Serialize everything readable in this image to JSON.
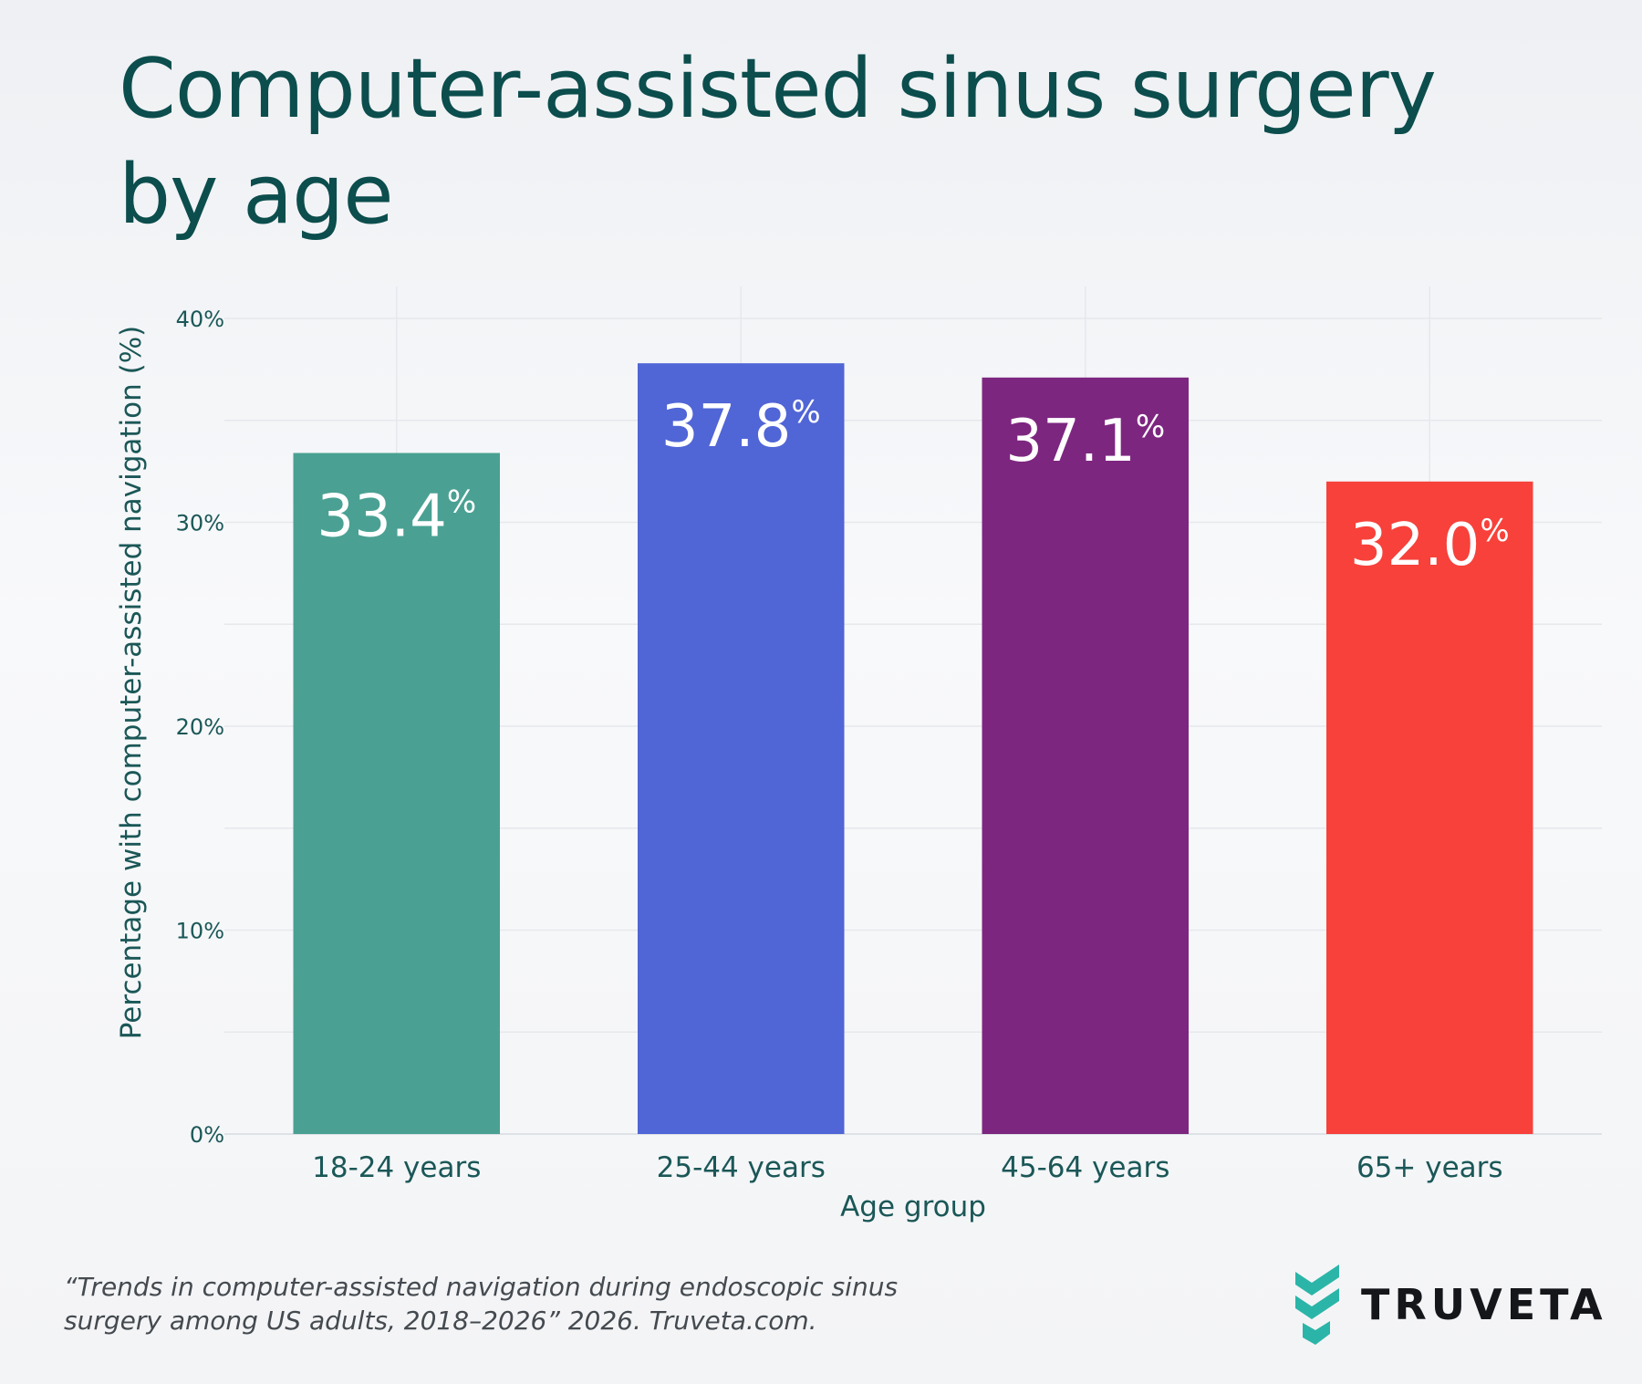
{
  "title": "Computer-assisted sinus surgery by age",
  "source": "“Trends in computer-assisted navigation during endoscopic sinus surgery among US adults, 2018–2026” 2026. Truveta.com.",
  "logo": {
    "text": "TRUVETA",
    "icon": "truveta-chevron-icon",
    "icon_color": "#2bb5a8"
  },
  "chart_data": {
    "type": "bar",
    "categories": [
      "18-24 years",
      "25-44 years",
      "45-64 years",
      "65+ years"
    ],
    "values": [
      33.4,
      37.8,
      37.1,
      32.0
    ],
    "value_labels": [
      "33.4",
      "37.8",
      "37.1",
      "32.0"
    ],
    "value_suffix": "%",
    "colors": [
      "#4aa193",
      "#5065d6",
      "#7d2680",
      "#f7413a"
    ],
    "xlabel": "Age group",
    "ylabel": "Percentage with computer-assisted navigation (%)",
    "ylim": [
      0,
      40
    ],
    "yticks": [
      0,
      10,
      20,
      30,
      40
    ],
    "ytick_labels": [
      "0%",
      "10%",
      "20%",
      "30%",
      "40%"
    ],
    "grid": true
  }
}
